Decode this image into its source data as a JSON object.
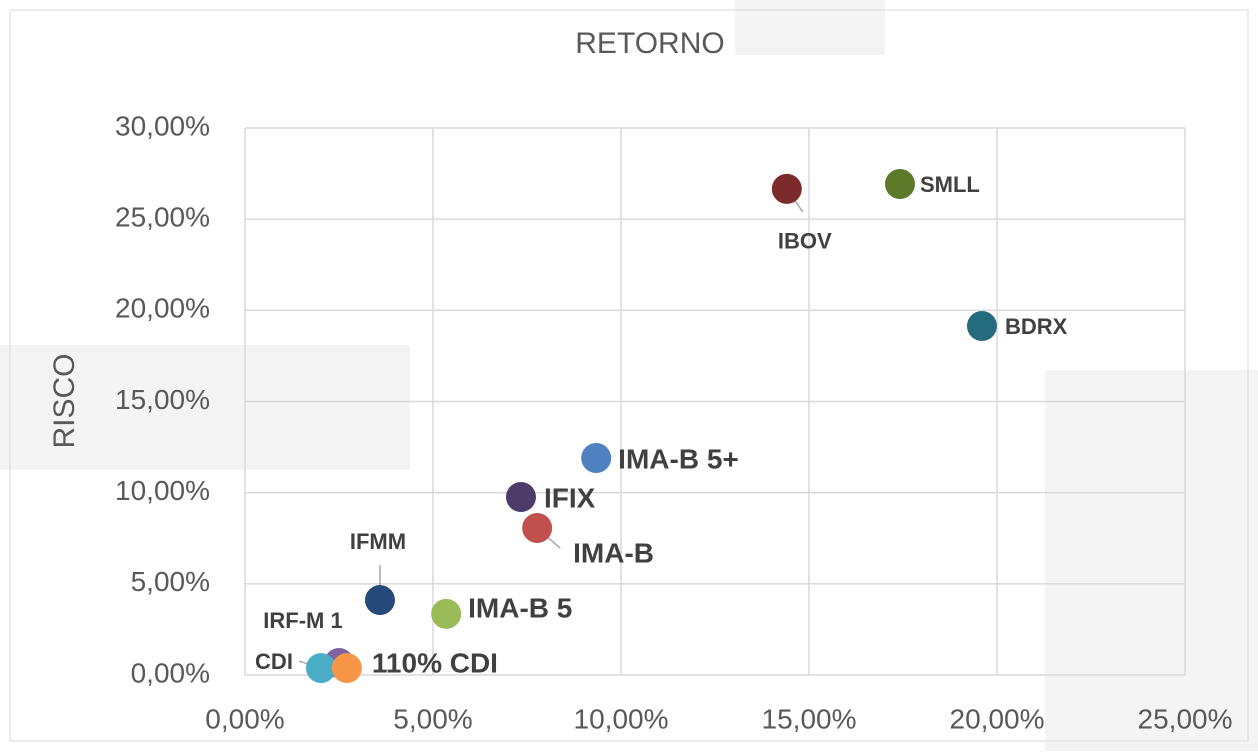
{
  "chart_data": {
    "type": "scatter",
    "x_label": "RETORNO",
    "y_label": "RISCO",
    "xlim": [
      0,
      25
    ],
    "ylim": [
      0,
      30
    ],
    "grid": true,
    "xticks": [
      {
        "value": 0,
        "label": "0,00%"
      },
      {
        "value": 5,
        "label": "5,00%"
      },
      {
        "value": 10,
        "label": "10,00%"
      },
      {
        "value": 15,
        "label": "15,00%"
      },
      {
        "value": 20,
        "label": "20,00%"
      },
      {
        "value": 25,
        "label": "25,00%"
      }
    ],
    "yticks": [
      {
        "value": 0,
        "label": "0,00%"
      },
      {
        "value": 5,
        "label": "5,00%"
      },
      {
        "value": 10,
        "label": "10,00%"
      },
      {
        "value": 15,
        "label": "15,00%"
      },
      {
        "value": 20,
        "label": "20,00%"
      },
      {
        "value": 25,
        "label": "25,00%"
      },
      {
        "value": 30,
        "label": "30,00%"
      }
    ],
    "series": [
      {
        "name": "IBOV",
        "color": "#7b2b2b",
        "x": [
          14.41
        ],
        "values": [
          26.66
        ]
      },
      {
        "name": "SMLL",
        "color": "#5d7a2a",
        "x": [
          17.42
        ],
        "values": [
          26.93
        ]
      },
      {
        "name": "BDRX",
        "color": "#246b7e",
        "x": [
          19.6
        ],
        "values": [
          19.14
        ]
      },
      {
        "name": "IMA-B 5+",
        "color": "#4f81c0",
        "x": [
          9.34
        ],
        "values": [
          11.9
        ]
      },
      {
        "name": "IFIX",
        "color": "#4d3b6a",
        "x": [
          7.34
        ],
        "values": [
          9.76
        ]
      },
      {
        "name": "IMA-B",
        "color": "#c0504d",
        "x": [
          7.77
        ],
        "values": [
          8.06
        ]
      },
      {
        "name": "IFMM",
        "color": "#254a7a",
        "x": [
          3.59
        ],
        "values": [
          4.11
        ]
      },
      {
        "name": "IMA-B 5",
        "color": "#9bbb59",
        "x": [
          5.35
        ],
        "values": [
          3.35
        ]
      },
      {
        "name": "IRF-M 1",
        "color": "#8064a2",
        "x": [
          2.5
        ],
        "values": [
          0.66
        ]
      },
      {
        "name": "CDI",
        "color": "#4bacc6",
        "x": [
          2.02
        ],
        "values": [
          0.38
        ]
      },
      {
        "name": "110% CDI",
        "color": "#f79646",
        "x": [
          2.71
        ],
        "values": [
          0.38
        ]
      }
    ]
  }
}
